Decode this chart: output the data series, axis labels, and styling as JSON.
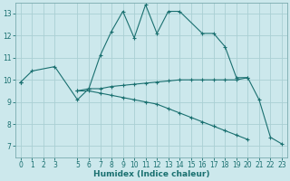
{
  "xlabel": "Humidex (Indice chaleur)",
  "bg_color": "#cce8ec",
  "grid_color": "#aacfd4",
  "line_color": "#1a7070",
  "xlim": [
    -0.5,
    23.5
  ],
  "ylim": [
    6.5,
    13.5
  ],
  "xticks": [
    0,
    1,
    2,
    3,
    5,
    6,
    7,
    8,
    9,
    10,
    11,
    12,
    13,
    14,
    15,
    16,
    17,
    18,
    19,
    20,
    21,
    22,
    23
  ],
  "yticks": [
    7,
    8,
    9,
    10,
    11,
    12,
    13
  ],
  "series": [
    {
      "x": [
        0,
        1,
        3,
        5,
        6,
        7,
        8,
        9,
        10,
        11,
        12,
        13,
        14,
        16,
        17,
        18,
        19,
        20,
        21,
        22,
        23
      ],
      "y": [
        9.9,
        10.4,
        10.6,
        9.1,
        9.6,
        11.1,
        12.2,
        13.1,
        11.9,
        13.4,
        12.1,
        13.1,
        13.1,
        12.1,
        12.1,
        11.5,
        10.1,
        10.1,
        9.1,
        7.4,
        7.1
      ]
    },
    {
      "x": [
        0,
        1,
        2,
        3,
        5,
        6,
        7,
        8,
        9,
        10,
        11,
        12,
        13,
        14,
        15,
        16,
        17,
        18,
        19,
        20,
        21,
        22,
        23
      ],
      "y": [
        9.9,
        null,
        null,
        null,
        9.5,
        9.6,
        9.6,
        9.7,
        9.75,
        9.8,
        9.85,
        9.9,
        9.95,
        10.0,
        10.0,
        10.0,
        10.0,
        10.0,
        10.0,
        10.1,
        null,
        null,
        null
      ]
    },
    {
      "x": [
        0,
        1,
        2,
        3,
        5,
        6,
        7,
        8,
        9,
        10,
        11,
        12,
        13,
        14,
        15,
        16,
        17,
        18,
        19,
        20,
        21,
        22,
        23
      ],
      "y": [
        9.9,
        null,
        null,
        null,
        9.5,
        9.5,
        9.4,
        9.3,
        9.2,
        9.1,
        9.0,
        8.9,
        8.7,
        8.5,
        8.3,
        8.1,
        7.9,
        7.7,
        7.5,
        7.3,
        null,
        null,
        null
      ]
    }
  ]
}
